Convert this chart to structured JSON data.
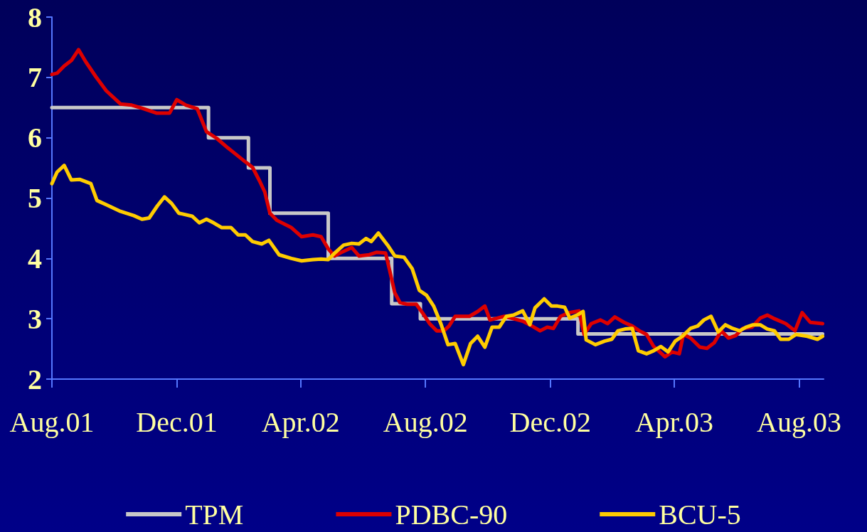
{
  "chart_data": {
    "type": "line",
    "xlim": [
      "2001-08-01",
      "2003-08-25"
    ],
    "ylim": [
      2,
      8
    ],
    "yticks": [
      2,
      3,
      4,
      5,
      6,
      7,
      8
    ],
    "xticks": [
      {
        "value": "2001-08-01",
        "label": "Aug.01"
      },
      {
        "value": "2001-12-01",
        "label": "Dec.01"
      },
      {
        "value": "2002-04-01",
        "label": "Apr.02"
      },
      {
        "value": "2002-08-01",
        "label": "Aug.02"
      },
      {
        "value": "2002-12-01",
        "label": "Dec.02"
      },
      {
        "value": "2003-04-01",
        "label": "Apr.03"
      },
      {
        "value": "2003-08-01",
        "label": "Aug.03"
      }
    ],
    "grid": false,
    "legend": "bottom",
    "marker": "none",
    "line_style": "solid",
    "series": [
      {
        "name": "TPM",
        "type": "step",
        "color": "#c8c8c8",
        "x": [
          "2001-08-01",
          "2002-01-01",
          "2002-02-09",
          "2002-03-02",
          "2002-04-28",
          "2002-06-29",
          "2002-07-27",
          "2002-12-28",
          "2003-08-24"
        ],
        "values": [
          6.5,
          6.0,
          5.5,
          4.75,
          4.0,
          3.25,
          3.0,
          2.75,
          2.75
        ]
      },
      {
        "name": "PDBC-90",
        "color": "#dd0000",
        "x": [
          "2001-08-01",
          "2001-08-06",
          "2001-08-13",
          "2001-08-20",
          "2001-08-27",
          "2001-09-03",
          "2001-09-13",
          "2001-09-23",
          "2001-10-07",
          "2001-10-18",
          "2001-10-28",
          "2001-11-11",
          "2001-11-24",
          "2001-12-01",
          "2001-12-10",
          "2001-12-21",
          "2001-12-30",
          "2002-01-09",
          "2002-01-20",
          "2002-01-26",
          "2002-02-06",
          "2002-02-13",
          "2002-02-20",
          "2002-02-25",
          "2002-03-02",
          "2002-03-09",
          "2002-03-23",
          "2002-04-02",
          "2002-04-13",
          "2002-04-21",
          "2002-04-28",
          "2002-05-04",
          "2002-05-11",
          "2002-05-21",
          "2002-05-28",
          "2002-06-07",
          "2002-06-14",
          "2002-06-23",
          "2002-06-27",
          "2002-07-02",
          "2002-07-07",
          "2002-07-14",
          "2002-07-23",
          "2002-07-29",
          "2002-08-05",
          "2002-08-12",
          "2002-08-19",
          "2002-08-24",
          "2002-08-30",
          "2002-09-13",
          "2002-09-21",
          "2002-09-28",
          "2002-10-03",
          "2002-10-10",
          "2002-10-17",
          "2002-10-26",
          "2002-11-04",
          "2002-11-13",
          "2002-11-21",
          "2002-11-28",
          "2002-12-04",
          "2002-12-11",
          "2002-12-19",
          "2002-12-29",
          "2003-01-03",
          "2003-01-10",
          "2003-01-19",
          "2003-01-26",
          "2003-02-02",
          "2003-02-11",
          "2003-02-19",
          "2003-02-26",
          "2003-03-05",
          "2003-03-12",
          "2003-03-23",
          "2003-03-30",
          "2003-04-06",
          "2003-04-10",
          "2003-04-17",
          "2003-04-26",
          "2003-05-03",
          "2003-05-10",
          "2003-05-17",
          "2003-05-24",
          "2003-05-31",
          "2003-06-07",
          "2003-06-16",
          "2003-06-24",
          "2003-07-01",
          "2003-07-08",
          "2003-07-19",
          "2003-07-28",
          "2003-08-04",
          "2003-08-12",
          "2003-08-24"
        ],
        "values": [
          7.05,
          7.07,
          7.19,
          7.28,
          7.46,
          7.26,
          7.01,
          6.78,
          6.56,
          6.54,
          6.49,
          6.41,
          6.41,
          6.63,
          6.54,
          6.48,
          6.1,
          5.99,
          5.83,
          5.75,
          5.6,
          5.51,
          5.28,
          5.1,
          4.75,
          4.63,
          4.51,
          4.36,
          4.39,
          4.36,
          4.16,
          4.04,
          4.1,
          4.18,
          4.04,
          4.06,
          4.1,
          4.09,
          3.8,
          3.43,
          3.27,
          3.24,
          3.24,
          3.1,
          2.92,
          2.8,
          2.8,
          2.88,
          3.04,
          3.04,
          3.12,
          3.21,
          2.98,
          3.01,
          3.04,
          3.0,
          2.96,
          2.88,
          2.8,
          2.86,
          2.84,
          3.04,
          3.1,
          3.13,
          2.74,
          2.92,
          2.98,
          2.92,
          3.03,
          2.94,
          2.88,
          2.8,
          2.74,
          2.54,
          2.37,
          2.45,
          2.42,
          2.74,
          2.68,
          2.53,
          2.51,
          2.6,
          2.8,
          2.68,
          2.72,
          2.84,
          2.86,
          3.01,
          3.06,
          3.0,
          2.92,
          2.8,
          3.1,
          2.94,
          2.92
        ]
      },
      {
        "name": "BCU-5",
        "color": "#ffcc00",
        "x": [
          "2001-08-01",
          "2001-08-06",
          "2001-08-13",
          "2001-08-20",
          "2001-08-28",
          "2001-09-08",
          "2001-09-14",
          "2001-09-23",
          "2001-10-07",
          "2001-10-20",
          "2001-10-28",
          "2001-11-04",
          "2001-11-12",
          "2001-11-19",
          "2001-11-26",
          "2001-12-03",
          "2001-12-16",
          "2001-12-23",
          "2001-12-30",
          "2002-01-06",
          "2002-01-14",
          "2002-01-23",
          "2002-01-30",
          "2002-02-06",
          "2002-02-13",
          "2002-02-22",
          "2002-03-01",
          "2002-03-11",
          "2002-03-23",
          "2002-04-02",
          "2002-04-13",
          "2002-04-21",
          "2002-04-28",
          "2002-05-05",
          "2002-05-13",
          "2002-05-21",
          "2002-05-28",
          "2002-06-04",
          "2002-06-09",
          "2002-06-16",
          "2002-06-25",
          "2002-07-02",
          "2002-07-11",
          "2002-07-19",
          "2002-07-26",
          "2002-08-02",
          "2002-08-09",
          "2002-08-16",
          "2002-08-23",
          "2002-08-30",
          "2002-09-07",
          "2002-09-14",
          "2002-09-21",
          "2002-09-28",
          "2002-10-05",
          "2002-10-12",
          "2002-10-19",
          "2002-10-26",
          "2002-11-04",
          "2002-11-11",
          "2002-11-16",
          "2002-11-25",
          "2002-12-02",
          "2002-12-08",
          "2002-12-15",
          "2002-12-20",
          "2002-12-27",
          "2003-01-02",
          "2003-01-05",
          "2003-01-14",
          "2003-01-23",
          "2003-01-30",
          "2003-02-05",
          "2003-02-12",
          "2003-02-19",
          "2003-02-25",
          "2003-03-05",
          "2003-03-12",
          "2003-03-19",
          "2003-03-26",
          "2003-04-02",
          "2003-04-09",
          "2003-04-17",
          "2003-04-24",
          "2003-04-30",
          "2003-05-07",
          "2003-05-14",
          "2003-05-21",
          "2003-05-28",
          "2003-06-04",
          "2003-06-10",
          "2003-06-17",
          "2003-06-24",
          "2003-07-01",
          "2003-07-08",
          "2003-07-14",
          "2003-07-22",
          "2003-07-29",
          "2003-08-09",
          "2003-08-19",
          "2003-08-24"
        ],
        "values": [
          5.24,
          5.43,
          5.54,
          5.3,
          5.31,
          5.24,
          4.96,
          4.89,
          4.78,
          4.71,
          4.65,
          4.67,
          4.87,
          5.02,
          4.91,
          4.75,
          4.7,
          4.59,
          4.65,
          4.59,
          4.51,
          4.51,
          4.39,
          4.39,
          4.28,
          4.24,
          4.3,
          4.06,
          4.0,
          3.96,
          3.98,
          3.99,
          3.98,
          4.1,
          4.22,
          4.25,
          4.24,
          4.33,
          4.28,
          4.42,
          4.22,
          4.04,
          4.02,
          3.83,
          3.47,
          3.39,
          3.21,
          2.92,
          2.57,
          2.59,
          2.24,
          2.59,
          2.71,
          2.53,
          2.86,
          2.86,
          3.04,
          3.06,
          3.13,
          2.9,
          3.18,
          3.33,
          3.21,
          3.21,
          3.19,
          3.01,
          3.06,
          3.12,
          2.65,
          2.57,
          2.63,
          2.66,
          2.8,
          2.83,
          2.84,
          2.47,
          2.42,
          2.47,
          2.54,
          2.45,
          2.63,
          2.71,
          2.84,
          2.88,
          2.98,
          3.04,
          2.78,
          2.9,
          2.84,
          2.8,
          2.86,
          2.9,
          2.9,
          2.83,
          2.8,
          2.66,
          2.66,
          2.74,
          2.71,
          2.66,
          2.71
        ]
      }
    ]
  }
}
